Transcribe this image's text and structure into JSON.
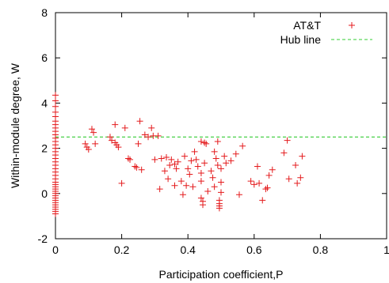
{
  "chart_data": {
    "type": "scatter",
    "xlabel": "Participation coefficient,P",
    "ylabel": "Within-module degree, W",
    "xlim": [
      0,
      1
    ],
    "ylim": [
      -2,
      8
    ],
    "xticks": [
      0,
      0.2,
      0.4,
      0.6,
      0.8,
      1
    ],
    "xtick_labels": [
      "0",
      "0.2",
      "0.4",
      "0.6",
      "0.8",
      "1"
    ],
    "yticks": [
      -2,
      0,
      2,
      4,
      6,
      8
    ],
    "ytick_labels": [
      "-2",
      "0",
      "2",
      "4",
      "6",
      "8"
    ],
    "grid": false,
    "legend_position": "top-right",
    "series": [
      {
        "name": "AT&T",
        "marker": "plus",
        "color": "#e41a1c",
        "points": [
          [
            0,
            4.35
          ],
          [
            0,
            4.1
          ],
          [
            0,
            3.85
          ],
          [
            0,
            3.6
          ],
          [
            0,
            3.4
          ],
          [
            0,
            3.2
          ],
          [
            0,
            3.05
          ],
          [
            0,
            2.9
          ],
          [
            0,
            2.75
          ],
          [
            0,
            2.6
          ],
          [
            0,
            2.45
          ],
          [
            0,
            2.3
          ],
          [
            0,
            2.15
          ],
          [
            0,
            2.0
          ],
          [
            0,
            1.85
          ],
          [
            0,
            1.7
          ],
          [
            0,
            1.55
          ],
          [
            0,
            1.4
          ],
          [
            0,
            1.25
          ],
          [
            0,
            1.1
          ],
          [
            0,
            0.95
          ],
          [
            0,
            0.8
          ],
          [
            0,
            0.65
          ],
          [
            0,
            0.5
          ],
          [
            0,
            0.4
          ],
          [
            0,
            0.3
          ],
          [
            0,
            0.2
          ],
          [
            0,
            0.1
          ],
          [
            0,
            0.0
          ],
          [
            0,
            -0.1
          ],
          [
            0,
            -0.2
          ],
          [
            0,
            -0.3
          ],
          [
            0,
            -0.4
          ],
          [
            0,
            -0.5
          ],
          [
            0,
            -0.6
          ],
          [
            0,
            -0.7
          ],
          [
            0,
            -0.8
          ],
          [
            0,
            -0.9
          ],
          [
            0.09,
            2.2
          ],
          [
            0.095,
            2.05
          ],
          [
            0.1,
            1.95
          ],
          [
            0.11,
            2.85
          ],
          [
            0.115,
            2.7
          ],
          [
            0.12,
            2.2
          ],
          [
            0.165,
            2.5
          ],
          [
            0.17,
            2.35
          ],
          [
            0.18,
            2.25
          ],
          [
            0.18,
            3.05
          ],
          [
            0.185,
            2.15
          ],
          [
            0.19,
            2.05
          ],
          [
            0.2,
            0.45
          ],
          [
            0.21,
            2.9
          ],
          [
            0.22,
            1.55
          ],
          [
            0.225,
            1.5
          ],
          [
            0.24,
            1.2
          ],
          [
            0.245,
            1.15
          ],
          [
            0.25,
            2.2
          ],
          [
            0.255,
            3.2
          ],
          [
            0.26,
            1.05
          ],
          [
            0.27,
            2.6
          ],
          [
            0.28,
            2.5
          ],
          [
            0.29,
            2.9
          ],
          [
            0.295,
            2.55
          ],
          [
            0.3,
            1.5
          ],
          [
            0.31,
            2.55
          ],
          [
            0.315,
            0.2
          ],
          [
            0.32,
            1.55
          ],
          [
            0.33,
            1.0
          ],
          [
            0.335,
            1.6
          ],
          [
            0.34,
            0.65
          ],
          [
            0.345,
            1.25
          ],
          [
            0.35,
            1.5
          ],
          [
            0.36,
            1.3
          ],
          [
            0.36,
            0.35
          ],
          [
            0.365,
            1.1
          ],
          [
            0.37,
            1.4
          ],
          [
            0.38,
            0.55
          ],
          [
            0.385,
            -0.05
          ],
          [
            0.39,
            1.65
          ],
          [
            0.395,
            0.35
          ],
          [
            0.4,
            1.1
          ],
          [
            0.405,
            0.85
          ],
          [
            0.41,
            1.45
          ],
          [
            0.415,
            0.3
          ],
          [
            0.42,
            1.85
          ],
          [
            0.425,
            1.5
          ],
          [
            0.43,
            1.2
          ],
          [
            0.44,
            2.3
          ],
          [
            0.44,
            0.9
          ],
          [
            0.44,
            0.55
          ],
          [
            0.44,
            -0.2
          ],
          [
            0.445,
            -0.35
          ],
          [
            0.445,
            -0.5
          ],
          [
            0.45,
            2.25
          ],
          [
            0.45,
            1.35
          ],
          [
            0.455,
            2.2
          ],
          [
            0.46,
            0.1
          ],
          [
            0.47,
            1.0
          ],
          [
            0.475,
            0.7
          ],
          [
            0.48,
            0.3
          ],
          [
            0.48,
            1.85
          ],
          [
            0.485,
            1.55
          ],
          [
            0.49,
            1.25
          ],
          [
            0.49,
            2.3
          ],
          [
            0.495,
            -0.3
          ],
          [
            0.495,
            -0.45
          ],
          [
            0.495,
            -0.55
          ],
          [
            0.495,
            -0.65
          ],
          [
            0.5,
            0.5
          ],
          [
            0.5,
            1.1
          ],
          [
            0.5,
            0.05
          ],
          [
            0.51,
            1.65
          ],
          [
            0.515,
            1.35
          ],
          [
            0.53,
            1.45
          ],
          [
            0.545,
            1.75
          ],
          [
            0.555,
            -0.05
          ],
          [
            0.565,
            2.1
          ],
          [
            0.59,
            0.55
          ],
          [
            0.6,
            0.4
          ],
          [
            0.61,
            1.2
          ],
          [
            0.615,
            0.45
          ],
          [
            0.625,
            -0.3
          ],
          [
            0.635,
            0.2
          ],
          [
            0.64,
            0.25
          ],
          [
            0.645,
            0.8
          ],
          [
            0.655,
            1.05
          ],
          [
            0.69,
            1.8
          ],
          [
            0.7,
            2.35
          ],
          [
            0.705,
            0.65
          ],
          [
            0.725,
            1.25
          ],
          [
            0.73,
            0.45
          ],
          [
            0.74,
            0.7
          ],
          [
            0.745,
            1.65
          ]
        ]
      },
      {
        "name": "Hub line",
        "type": "line",
        "style": "dashed",
        "color": "#33cc33",
        "x": [
          0,
          1
        ],
        "y": [
          2.5,
          2.5
        ]
      }
    ]
  }
}
